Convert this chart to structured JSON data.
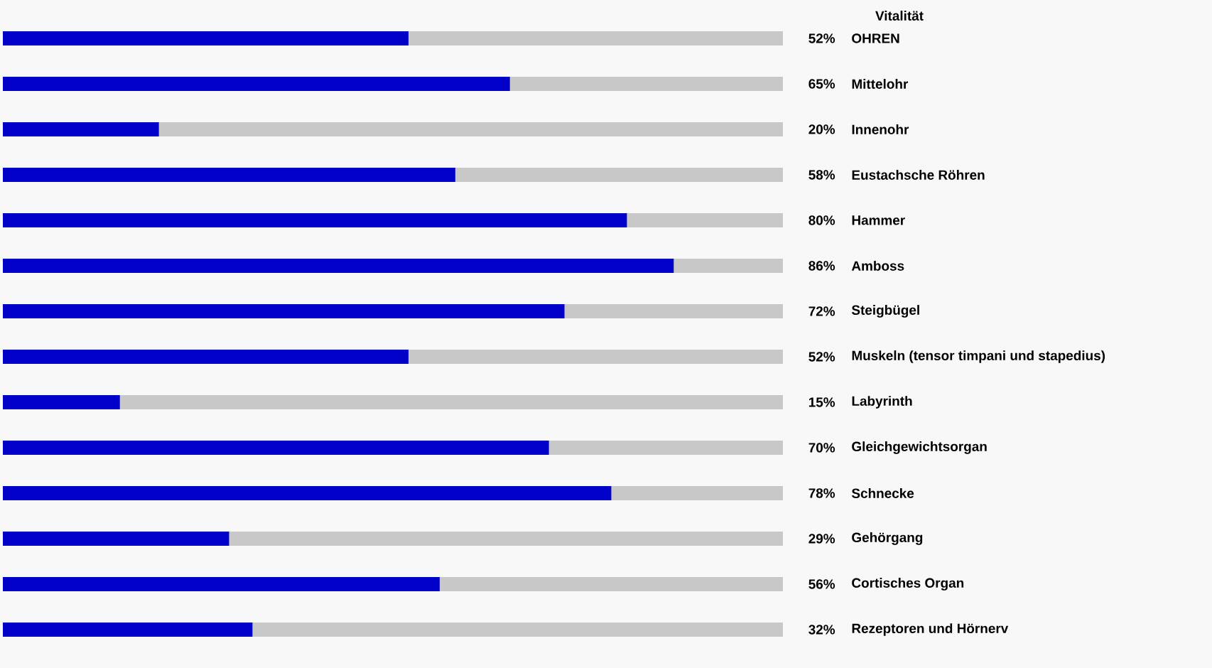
{
  "chart_data": {
    "type": "bar",
    "orientation": "horizontal",
    "title": "Vitalität",
    "categories": [
      "OHREN",
      "Mittelohr",
      "Innenohr",
      "Eustachsche Röhren",
      "Hammer",
      "Amboss",
      "Steigbügel",
      "Muskeln (tensor timpani und stapedius)",
      "Labyrinth",
      "Gleichgewichtsorgan",
      "Schnecke",
      "Gehörgang",
      "Cortisches Organ",
      "Rezeptoren und Hörnerv"
    ],
    "values": [
      52,
      65,
      20,
      58,
      80,
      86,
      72,
      52,
      15,
      70,
      78,
      29,
      56,
      32
    ],
    "value_labels": [
      "52%",
      "65%",
      "20%",
      "58%",
      "80%",
      "86%",
      "72%",
      "52%",
      "15%",
      "70%",
      "78%",
      "29%",
      "56%",
      "32%"
    ],
    "color": "#0000c8",
    "xlim": [
      0,
      100
    ],
    "tick_labels": false
  }
}
